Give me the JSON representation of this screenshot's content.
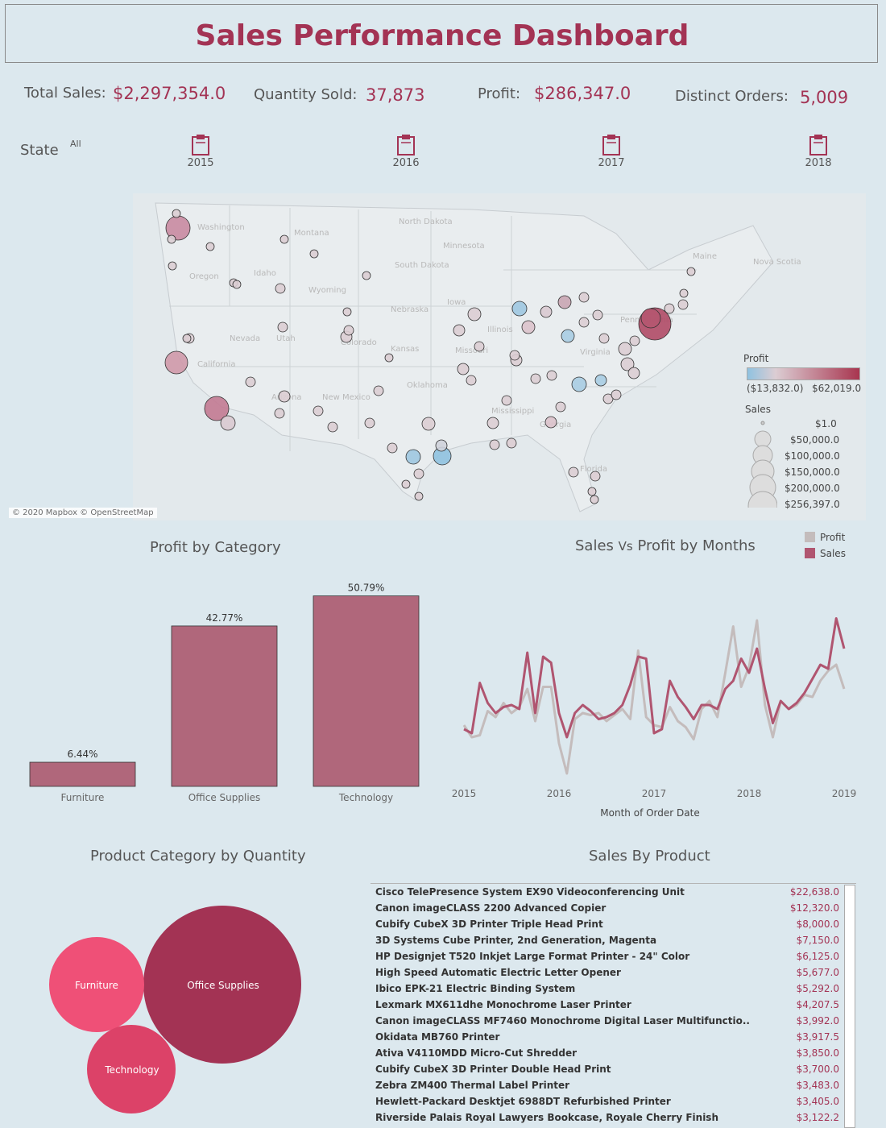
{
  "dashboard": {
    "title": "Sales Performance Dashboard"
  },
  "kpis": {
    "total_sales_label": "Total Sales:",
    "total_sales_value": "$2,297,354.0",
    "quantity_label": "Quantity Sold:",
    "quantity_value": "37,873",
    "profit_label": "Profit:",
    "profit_value": "$286,347.0",
    "orders_label": "Distinct Orders:",
    "orders_value": "5,009"
  },
  "filters": {
    "state_label": "State",
    "state_value": "All",
    "years": [
      "2015",
      "2016",
      "2017",
      "2018"
    ],
    "year_icon": "calendar-icon"
  },
  "map": {
    "attribution": "© 2020 Mapbox © OpenStreetMap",
    "place_labels": [
      "North Dakota",
      "Montana",
      "South Dakota",
      "Wyoming",
      "Nebraska",
      "Kansas",
      "Nevada",
      "Utah",
      "Colorado",
      "Arizona",
      "New Mexico",
      "Oklahoma",
      "Mississippi",
      "Georgia",
      "Virginia",
      "Pennsylvania",
      "Iowa",
      "Idaho",
      "Oregon",
      "Washington",
      "California",
      "Minnesota",
      "Illinois",
      "Missouri",
      "Florida",
      "Nova Scotia",
      "Maine"
    ],
    "profit_legend_title": "Profit",
    "profit_min": "($13,832.0)",
    "profit_max": "$62,019.0",
    "sales_legend_title": "Sales",
    "sales_legend": [
      "$1.0",
      "$50,000.0",
      "$100,000.0",
      "$150,000.0",
      "$200,000.0",
      "$256,397.0"
    ],
    "colors": {
      "negative": "#8fc2e0",
      "neutral": "#dccdd3",
      "positive": "#a8354f"
    }
  },
  "profit_by_category": {
    "title": "Profit by Category",
    "chart_data": {
      "type": "bar",
      "categories": [
        "Furniture",
        "Office Supplies",
        "Technology"
      ],
      "values": [
        6.44,
        42.77,
        50.79
      ],
      "value_labels": [
        "6.44%",
        "42.77%",
        "50.79%"
      ],
      "ylim": [
        0,
        55
      ],
      "grid": false
    }
  },
  "sales_vs_profit": {
    "title_part1": "Sales",
    "title_vs": "Vs",
    "title_part2": "Profit by Months",
    "legend_profit": "Profit",
    "legend_sales": "Sales",
    "xlabel": "Month of Order Date",
    "x_ticks": [
      "2015",
      "2016",
      "2017",
      "2018",
      "2019"
    ],
    "colors": {
      "profit": "#c4bcbc",
      "sales": "#b05570"
    },
    "chart_data": {
      "type": "line",
      "x_start": "2015-01",
      "x_end": "2019-01",
      "series": [
        {
          "name": "Sales",
          "values": [
            0.22,
            0.2,
            0.45,
            0.35,
            0.3,
            0.33,
            0.34,
            0.32,
            0.6,
            0.3,
            0.58,
            0.55,
            0.3,
            0.18,
            0.3,
            0.34,
            0.31,
            0.27,
            0.28,
            0.3,
            0.34,
            0.44,
            0.58,
            0.57,
            0.2,
            0.22,
            0.46,
            0.38,
            0.33,
            0.27,
            0.34,
            0.34,
            0.32,
            0.42,
            0.46,
            0.57,
            0.5,
            0.62,
            0.42,
            0.25,
            0.36,
            0.32,
            0.35,
            0.4,
            0.47,
            0.54,
            0.52,
            0.77,
            0.62
          ]
        },
        {
          "name": "Profit",
          "values": [
            0.24,
            0.18,
            0.19,
            0.31,
            0.28,
            0.35,
            0.3,
            0.33,
            0.42,
            0.26,
            0.43,
            0.43,
            0.15,
            0.0,
            0.27,
            0.3,
            0.29,
            0.3,
            0.26,
            0.29,
            0.32,
            0.27,
            0.61,
            0.28,
            0.24,
            0.23,
            0.33,
            0.26,
            0.23,
            0.17,
            0.32,
            0.36,
            0.28,
            0.5,
            0.73,
            0.43,
            0.53,
            0.76,
            0.34,
            0.18,
            0.36,
            0.32,
            0.34,
            0.39,
            0.38,
            0.46,
            0.51,
            0.54,
            0.42
          ]
        }
      ]
    }
  },
  "quantity_bubbles": {
    "title": "Product Category by Quantity",
    "items": [
      {
        "label": "Office Supplies",
        "color": "#a33354"
      },
      {
        "label": "Furniture",
        "color": "#ef5077"
      },
      {
        "label": "Technology",
        "color": "#dc4268"
      }
    ]
  },
  "sales_by_product": {
    "title": "Sales By Product",
    "rows": [
      {
        "name": "Cisco TelePresence System EX90 Videoconferencing Unit",
        "value": "$22,638.0"
      },
      {
        "name": "Canon imageCLASS 2200 Advanced Copier",
        "value": "$12,320.0"
      },
      {
        "name": "Cubify CubeX 3D Printer Triple Head Print",
        "value": "$8,000.0"
      },
      {
        "name": "3D Systems Cube Printer, 2nd Generation, Magenta",
        "value": "$7,150.0"
      },
      {
        "name": "HP Designjet T520 Inkjet Large Format Printer - 24\" Color",
        "value": "$6,125.0"
      },
      {
        "name": "High Speed Automatic Electric Letter Opener",
        "value": "$5,677.0"
      },
      {
        "name": "Ibico EPK-21 Electric Binding System",
        "value": "$5,292.0"
      },
      {
        "name": "Lexmark MX611dhe Monochrome Laser Printer",
        "value": "$4,207.5"
      },
      {
        "name": "Canon imageCLASS MF7460 Monochrome Digital Laser Multifunctio..",
        "value": "$3,992.0"
      },
      {
        "name": "Okidata MB760 Printer",
        "value": "$3,917.5"
      },
      {
        "name": "Ativa V4110MDD Micro-Cut Shredder",
        "value": "$3,850.0"
      },
      {
        "name": "Cubify CubeX 3D Printer Double Head Print",
        "value": "$3,700.0"
      },
      {
        "name": "Zebra ZM400 Thermal Label Printer",
        "value": "$3,483.0"
      },
      {
        "name": "Hewlett-Packard Desktjet 6988DT Refurbished Printer",
        "value": "$3,405.0"
      },
      {
        "name": "Riverside Palais Royal Lawyers Bookcase, Royale Cherry Finish",
        "value": "$3,122.2"
      }
    ]
  }
}
